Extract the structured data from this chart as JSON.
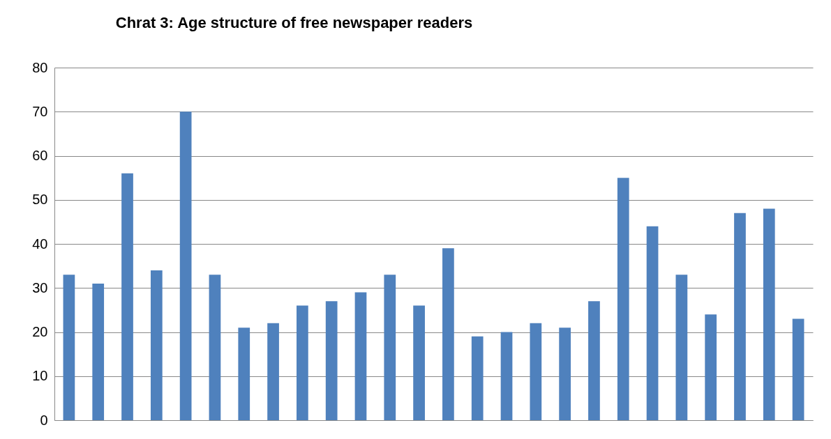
{
  "chart_data": {
    "type": "bar",
    "title": "Chrat 3: Age structure of free newspaper readers",
    "categories": [
      null,
      null,
      null,
      null,
      null,
      null,
      null,
      null,
      null,
      null,
      null,
      null,
      null,
      null,
      null,
      null,
      null,
      null,
      null,
      null,
      null,
      null,
      null,
      null,
      null,
      null
    ],
    "values": [
      33,
      31,
      56,
      34,
      70,
      33,
      21,
      22,
      26,
      27,
      29,
      33,
      26,
      39,
      19,
      20,
      22,
      21,
      27,
      55,
      44,
      33,
      24,
      47,
      48,
      23
    ],
    "color": "#4f81bd",
    "ylim": [
      0,
      80
    ],
    "yticks": [
      0,
      10,
      20,
      30,
      40,
      50,
      60,
      70,
      80
    ],
    "grid": "y"
  }
}
